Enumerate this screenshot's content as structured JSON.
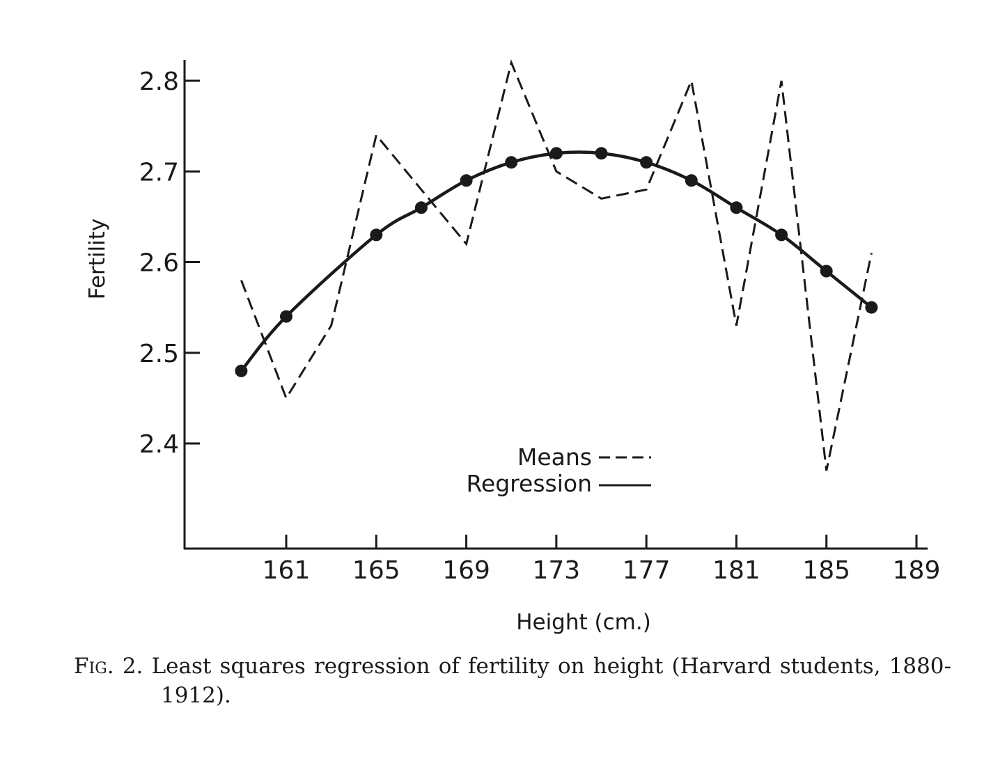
{
  "chart_data": {
    "type": "line",
    "xlabel": "Height (cm.)",
    "ylabel": "Fertility",
    "xlim": [
      157,
      190
    ],
    "ylim": [
      2.28,
      2.83
    ],
    "x_ticks": [
      161,
      165,
      169,
      173,
      177,
      181,
      185,
      189
    ],
    "x_tick_labels": [
      "161",
      "165",
      "169",
      "173",
      "177",
      "181",
      "185",
      "189"
    ],
    "y_ticks": [
      2.4,
      2.5,
      2.6,
      2.7,
      2.8
    ],
    "y_tick_labels": [
      "2.4",
      "2.5",
      "2.6",
      "2.7",
      "2.8"
    ],
    "legend_placement": "bottom-center",
    "series": [
      {
        "name": "Means",
        "style": "dashed",
        "x": [
          159,
          161,
          163,
          165,
          167,
          169,
          171,
          173,
          175,
          177,
          179,
          181,
          183,
          185,
          187
        ],
        "y": [
          2.58,
          2.45,
          2.53,
          2.74,
          2.68,
          2.62,
          2.82,
          2.7,
          2.67,
          2.68,
          2.8,
          2.53,
          2.8,
          2.37,
          2.61
        ]
      },
      {
        "name": "Regression",
        "style": "solid",
        "markers": true,
        "x": [
          159,
          161,
          165,
          167,
          169,
          171,
          173,
          175,
          177,
          179,
          181,
          183,
          185,
          187
        ],
        "y": [
          2.48,
          2.54,
          2.63,
          2.66,
          2.69,
          2.71,
          2.72,
          2.72,
          2.71,
          2.69,
          2.66,
          2.63,
          2.59,
          2.55
        ]
      }
    ]
  },
  "caption": {
    "fig_label": "Fig. 2.",
    "text_line1": "Least squares regression of fertility on height (Harvard students, 1880-",
    "text_line2": "1912)."
  }
}
